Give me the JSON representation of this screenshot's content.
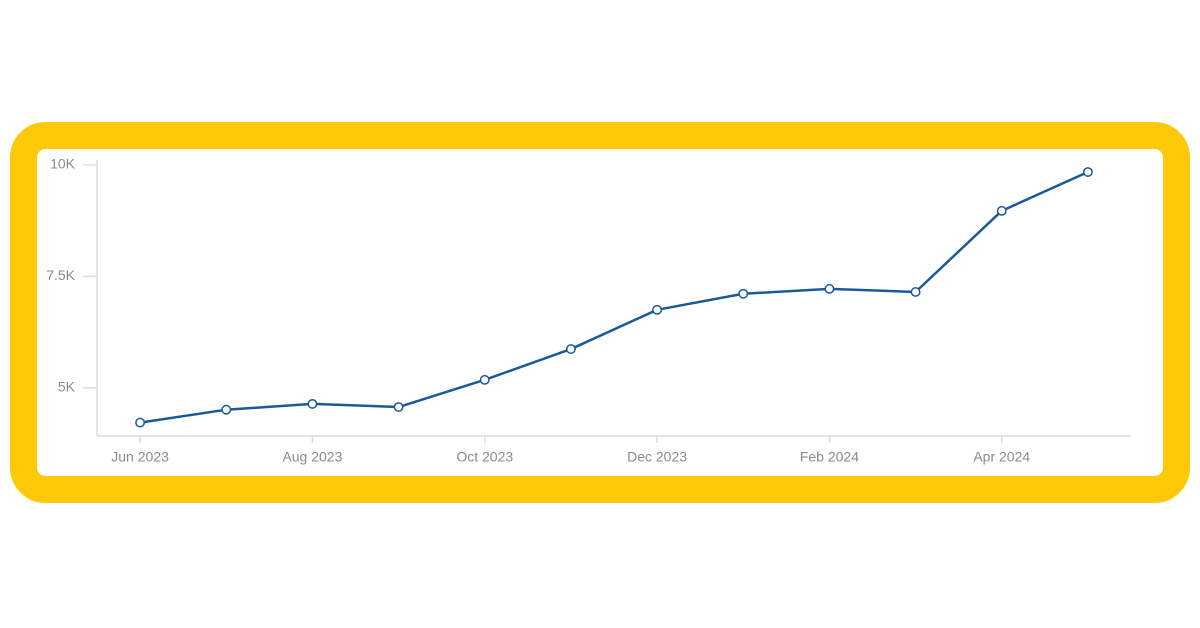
{
  "chart_data": {
    "type": "line",
    "categories": [
      "Jun 2023",
      null,
      "Aug 2023",
      null,
      "Oct 2023",
      null,
      "Dec 2023",
      null,
      "Feb 2024",
      null,
      "Apr 2024",
      null
    ],
    "values": [
      4220,
      4510,
      4640,
      4570,
      5180,
      5870,
      6750,
      7110,
      7220,
      7150,
      8970,
      9840
    ],
    "color": "#1a5a99",
    "ylim": [
      3920,
      10110
    ],
    "yticks": [
      {
        "value": 5000,
        "label": "5K"
      },
      {
        "value": 7500,
        "label": "7.5K"
      },
      {
        "value": 10000,
        "label": "10K"
      }
    ],
    "grid": false
  }
}
